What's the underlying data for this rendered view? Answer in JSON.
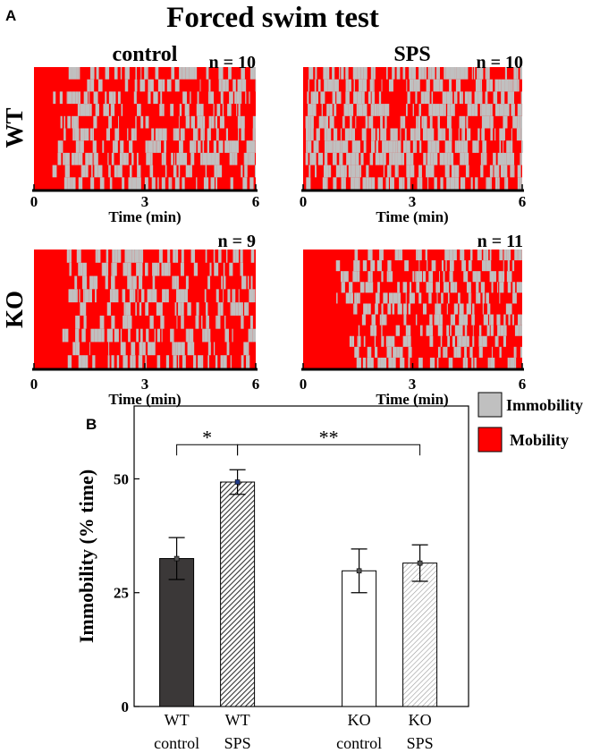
{
  "panel_a": {
    "letter": "A",
    "title": "Forced swim test",
    "col_labels": [
      "control",
      "SPS"
    ],
    "row_labels": [
      "WT",
      "KO"
    ],
    "n_labels": [
      "n = 10",
      "n = 10",
      "n = 9",
      "n = 11"
    ],
    "xlabel": "Time (min)",
    "xticks": [
      "0",
      "3",
      "6"
    ]
  },
  "panel_b": {
    "letter": "B",
    "legend": [
      {
        "label": "Immobility",
        "color": "#c0c0c0"
      },
      {
        "label": "Mobility",
        "color": "#ff0000"
      }
    ]
  },
  "chart_data": [
    {
      "type": "heatmap",
      "title": "WT control",
      "n_label": "n = 10",
      "animals": 10,
      "xlabel": "Time (min)",
      "xlim": [
        0,
        6
      ],
      "xticks": [
        0,
        3,
        6
      ],
      "states": {
        "immobility": "#c0c0c0",
        "mobility": "#ff0000"
      },
      "approx_latency_min": 0.8,
      "approx_immobility_fraction_after_latency": 0.38
    },
    {
      "type": "heatmap",
      "title": "WT SPS",
      "n_label": "n = 10",
      "animals": 10,
      "xlabel": "Time (min)",
      "xlim": [
        0,
        6
      ],
      "xticks": [
        0,
        3,
        6
      ],
      "states": {
        "immobility": "#c0c0c0",
        "mobility": "#ff0000"
      },
      "approx_latency_min": 0.1,
      "approx_immobility_fraction_after_latency": 0.52
    },
    {
      "type": "heatmap",
      "title": "KO control",
      "n_label": "n = 9",
      "animals": 9,
      "xlabel": "Time (min)",
      "xlim": [
        0,
        6
      ],
      "xticks": [
        0,
        3,
        6
      ],
      "states": {
        "immobility": "#c0c0c0",
        "mobility": "#ff0000"
      },
      "approx_latency_min": 0.8,
      "approx_immobility_fraction_after_latency": 0.36
    },
    {
      "type": "heatmap",
      "title": "KO SPS",
      "n_label": "n = 11",
      "animals": 11,
      "xlabel": "Time (min)",
      "xlim": [
        0,
        6
      ],
      "xticks": [
        0,
        3,
        6
      ],
      "states": {
        "immobility": "#c0c0c0",
        "mobility": "#ff0000"
      },
      "approx_latency_min": 1.1,
      "approx_immobility_fraction_after_latency": 0.38
    },
    {
      "type": "bar",
      "ylabel": "Immobility (% time)",
      "ylim": [
        0,
        66
      ],
      "yticks": [
        0,
        25,
        50
      ],
      "categories": [
        [
          "WT",
          "control"
        ],
        [
          "WT",
          "SPS"
        ],
        [
          "KO",
          "control"
        ],
        [
          "KO",
          "SPS"
        ]
      ],
      "positions": [
        1,
        2,
        4,
        5
      ],
      "xlim": [
        0.3,
        5.8
      ],
      "values": [
        32.5,
        49.3,
        29.8,
        31.5
      ],
      "errors": [
        4.6,
        2.7,
        4.8,
        4.0
      ],
      "fills": [
        "solid-dark",
        "hatch-dense",
        "white",
        "hatch-light"
      ],
      "significance": [
        {
          "from": 0,
          "to": 1,
          "label": "*",
          "y": 57.5
        },
        {
          "from": 1,
          "to": 3,
          "label": "**",
          "y": 57.5
        }
      ]
    }
  ]
}
